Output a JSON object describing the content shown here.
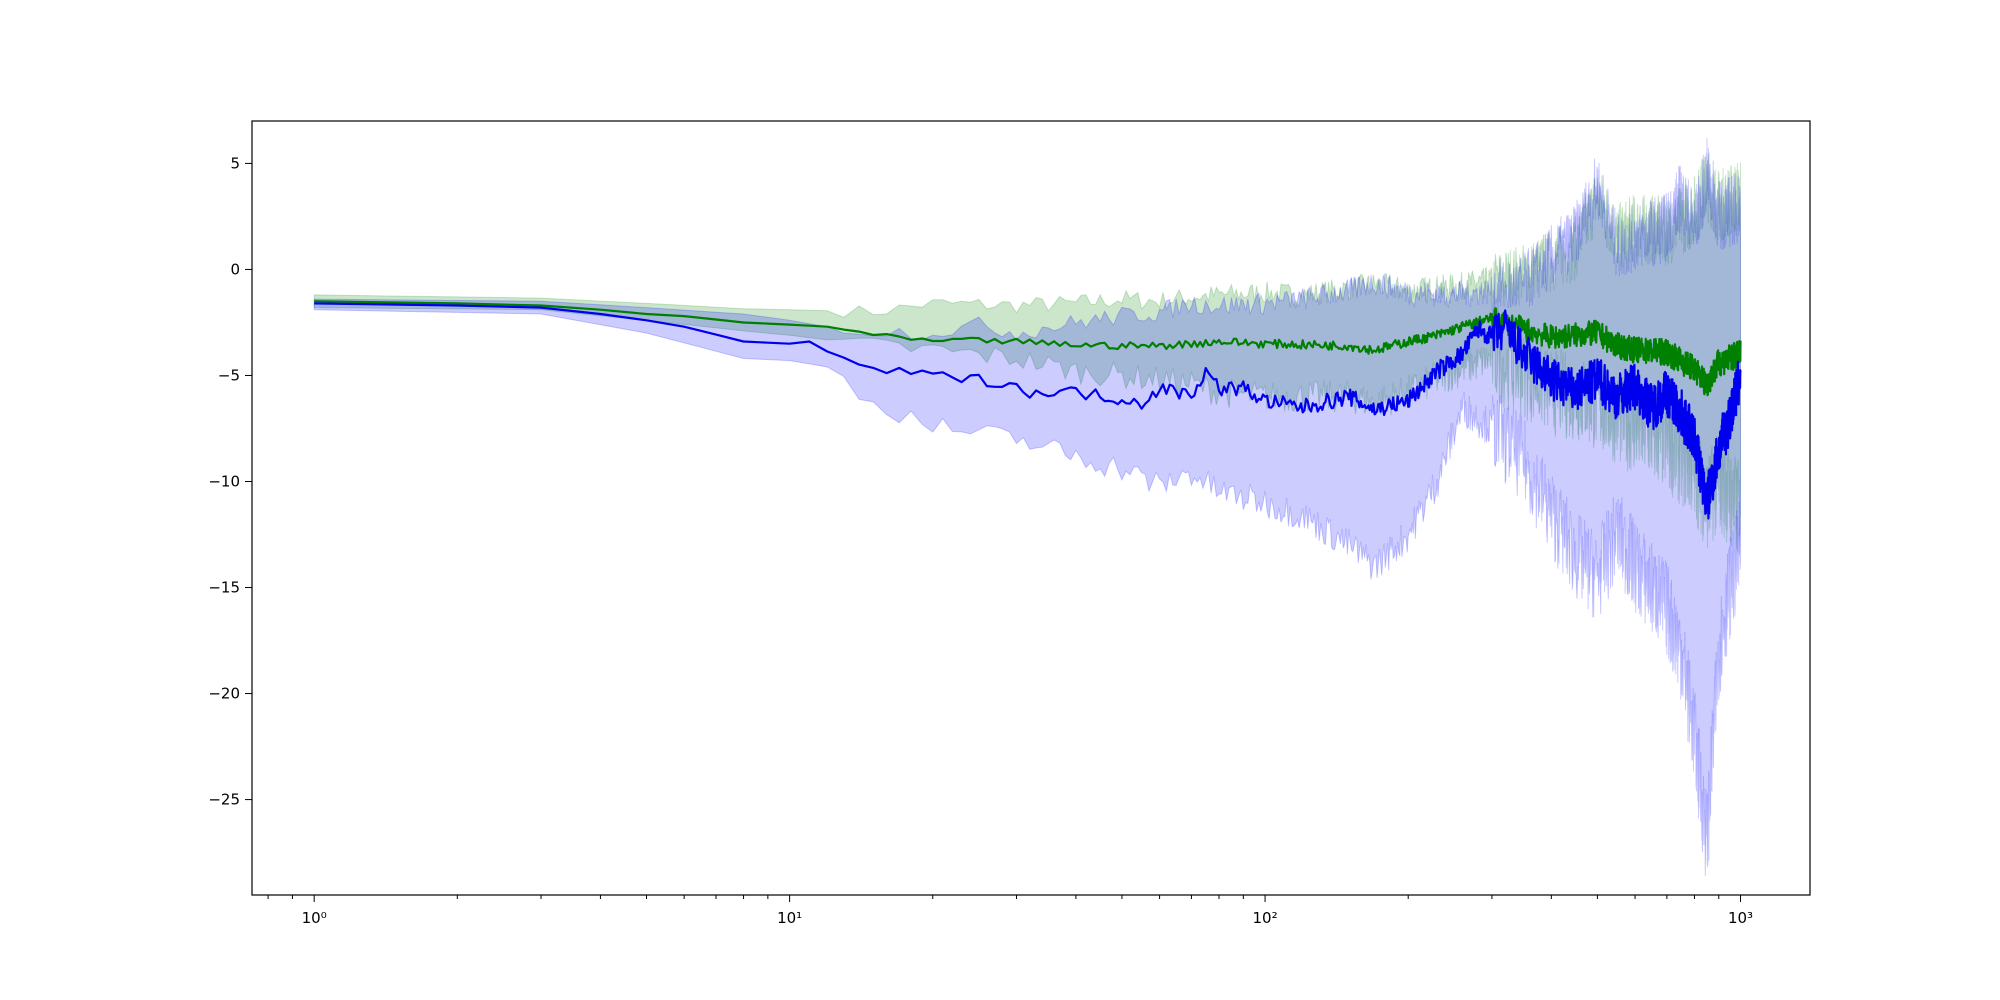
{
  "chart_data": {
    "type": "line",
    "title": "",
    "xlabel": "",
    "ylabel": "",
    "xscale": "log",
    "xlim": [
      0.74,
      1400
    ],
    "ylim": [
      -29.5,
      7
    ],
    "grid": false,
    "legend": "none",
    "x_ticks": [
      {
        "value": 1,
        "label": "10⁰"
      },
      {
        "value": 10,
        "label": "10¹"
      },
      {
        "value": 100,
        "label": "10²"
      },
      {
        "value": 1000,
        "label": "10³"
      }
    ],
    "y_ticks": [
      {
        "value": 5,
        "label": "5"
      },
      {
        "value": 0,
        "label": "0"
      },
      {
        "value": -5,
        "label": "−5"
      },
      {
        "value": -10,
        "label": "−10"
      },
      {
        "value": -15,
        "label": "−15"
      },
      {
        "value": -20,
        "label": "−20"
      },
      {
        "value": -25,
        "label": "−25"
      }
    ],
    "series": [
      {
        "color": "#008000",
        "band_fill": "#008000",
        "band_opacity": 0.2,
        "mean": [
          [
            1,
            -1.5
          ],
          [
            2,
            -1.6
          ],
          [
            3,
            -1.7
          ],
          [
            4,
            -1.9
          ],
          [
            5,
            -2.1
          ],
          [
            6,
            -2.2
          ],
          [
            8,
            -2.5
          ],
          [
            10,
            -2.6
          ],
          [
            12,
            -2.7
          ],
          [
            15,
            -3.1
          ],
          [
            20,
            -3.4
          ],
          [
            25,
            -3.35
          ],
          [
            30,
            -3.4
          ],
          [
            35,
            -3.5
          ],
          [
            40,
            -3.55
          ],
          [
            50,
            -3.6
          ],
          [
            60,
            -3.6
          ],
          [
            70,
            -3.5
          ],
          [
            80,
            -3.4
          ],
          [
            100,
            -3.5
          ],
          [
            120,
            -3.55
          ],
          [
            150,
            -3.6
          ],
          [
            170,
            -3.8
          ],
          [
            200,
            -3.4
          ],
          [
            230,
            -3.1
          ],
          [
            260,
            -2.7
          ],
          [
            300,
            -2.3
          ],
          [
            350,
            -2.8
          ],
          [
            400,
            -3.2
          ],
          [
            450,
            -3.1
          ],
          [
            500,
            -3.0
          ],
          [
            550,
            -3.6
          ],
          [
            600,
            -3.8
          ],
          [
            700,
            -3.9
          ],
          [
            800,
            -4.7
          ],
          [
            850,
            -5.4
          ],
          [
            900,
            -4.4
          ],
          [
            1000,
            -4.0
          ]
        ],
        "upper": [
          [
            1,
            -1.2
          ],
          [
            3,
            -1.35
          ],
          [
            5,
            -1.6
          ],
          [
            8,
            -1.85
          ],
          [
            10,
            -1.9
          ],
          [
            15,
            -2.0
          ],
          [
            20,
            -1.6
          ],
          [
            30,
            -1.7
          ],
          [
            40,
            -1.6
          ],
          [
            50,
            -1.4
          ],
          [
            60,
            -1.5
          ],
          [
            70,
            -1.3
          ],
          [
            80,
            -1.2
          ],
          [
            100,
            -1.1
          ],
          [
            120,
            -1.2
          ],
          [
            150,
            -0.9
          ],
          [
            170,
            -0.7
          ],
          [
            200,
            -1.0
          ],
          [
            250,
            -0.8
          ],
          [
            300,
            -0.5
          ],
          [
            350,
            -0.2
          ],
          [
            400,
            0.4
          ],
          [
            450,
            1.0
          ],
          [
            500,
            3.5
          ],
          [
            550,
            1.5
          ],
          [
            600,
            2.0
          ],
          [
            700,
            1.8
          ],
          [
            800,
            2.8
          ],
          [
            850,
            4.0
          ],
          [
            900,
            3.0
          ],
          [
            1000,
            3.5
          ]
        ],
        "lower": [
          [
            1,
            -1.8
          ],
          [
            3,
            -1.9
          ],
          [
            5,
            -2.4
          ],
          [
            8,
            -2.9
          ],
          [
            10,
            -3.1
          ],
          [
            15,
            -3.6
          ],
          [
            20,
            -3.8
          ],
          [
            30,
            -4.2
          ],
          [
            40,
            -4.8
          ],
          [
            50,
            -5.0
          ],
          [
            60,
            -5.2
          ],
          [
            70,
            -5.4
          ],
          [
            80,
            -5.8
          ],
          [
            100,
            -6.0
          ],
          [
            120,
            -6.0
          ],
          [
            150,
            -6.0
          ],
          [
            170,
            -6.3
          ],
          [
            200,
            -5.8
          ],
          [
            250,
            -4.8
          ],
          [
            300,
            -4.2
          ],
          [
            350,
            -5.0
          ],
          [
            400,
            -5.8
          ],
          [
            450,
            -6.0
          ],
          [
            500,
            -6.5
          ],
          [
            550,
            -7.0
          ],
          [
            600,
            -7.5
          ],
          [
            700,
            -8.2
          ],
          [
            800,
            -9.5
          ],
          [
            850,
            -11.0
          ],
          [
            900,
            -10.0
          ],
          [
            1000,
            -11.5
          ]
        ]
      },
      {
        "color": "#0000ee",
        "band_fill": "#0000ff",
        "band_opacity": 0.2,
        "mean": [
          [
            1,
            -1.6
          ],
          [
            2,
            -1.7
          ],
          [
            3,
            -1.8
          ],
          [
            4,
            -2.1
          ],
          [
            5,
            -2.4
          ],
          [
            6,
            -2.7
          ],
          [
            8,
            -3.4
          ],
          [
            10,
            -3.5
          ],
          [
            11,
            -3.4
          ],
          [
            13,
            -4.3
          ],
          [
            15,
            -4.7
          ],
          [
            20,
            -5.0
          ],
          [
            25,
            -5.2
          ],
          [
            30,
            -5.4
          ],
          [
            32,
            -6.0
          ],
          [
            35,
            -5.7
          ],
          [
            40,
            -5.8
          ],
          [
            50,
            -6.1
          ],
          [
            55,
            -6.3
          ],
          [
            60,
            -5.6
          ],
          [
            70,
            -5.9
          ],
          [
            75,
            -4.8
          ],
          [
            80,
            -5.6
          ],
          [
            90,
            -5.6
          ],
          [
            100,
            -6.2
          ],
          [
            120,
            -6.5
          ],
          [
            150,
            -6.0
          ],
          [
            170,
            -6.6
          ],
          [
            200,
            -6.2
          ],
          [
            230,
            -4.8
          ],
          [
            260,
            -4.0
          ],
          [
            280,
            -2.8
          ],
          [
            300,
            -3.2
          ],
          [
            320,
            -2.8
          ],
          [
            350,
            -4.0
          ],
          [
            400,
            -5.2
          ],
          [
            450,
            -5.8
          ],
          [
            500,
            -5.2
          ],
          [
            550,
            -6.0
          ],
          [
            600,
            -5.5
          ],
          [
            650,
            -6.5
          ],
          [
            700,
            -5.8
          ],
          [
            750,
            -6.8
          ],
          [
            800,
            -8.0
          ],
          [
            850,
            -11.0
          ],
          [
            900,
            -8.5
          ],
          [
            950,
            -7.0
          ],
          [
            1000,
            -5.0
          ]
        ],
        "upper": [
          [
            1,
            -1.4
          ],
          [
            3,
            -1.5
          ],
          [
            5,
            -1.8
          ],
          [
            8,
            -2.1
          ],
          [
            10,
            -2.4
          ],
          [
            12,
            -2.7
          ],
          [
            15,
            -2.9
          ],
          [
            20,
            -3.0
          ],
          [
            25,
            -2.6
          ],
          [
            30,
            -3.0
          ],
          [
            40,
            -2.5
          ],
          [
            50,
            -2.2
          ],
          [
            60,
            -2.0
          ],
          [
            70,
            -1.6
          ],
          [
            80,
            -1.7
          ],
          [
            100,
            -1.6
          ],
          [
            120,
            -1.4
          ],
          [
            150,
            -1.0
          ],
          [
            170,
            -0.6
          ],
          [
            200,
            -1.1
          ],
          [
            250,
            -1.2
          ],
          [
            300,
            -1.0
          ],
          [
            350,
            -0.7
          ],
          [
            400,
            0.6
          ],
          [
            450,
            1.6
          ],
          [
            500,
            4.0
          ],
          [
            550,
            1.0
          ],
          [
            600,
            1.5
          ],
          [
            700,
            2.0
          ],
          [
            750,
            3.5
          ],
          [
            800,
            2.0
          ],
          [
            850,
            4.5
          ],
          [
            900,
            2.5
          ],
          [
            1000,
            3.0
          ]
        ],
        "lower": [
          [
            1,
            -1.9
          ],
          [
            3,
            -2.1
          ],
          [
            5,
            -3.0
          ],
          [
            8,
            -4.2
          ],
          [
            10,
            -4.3
          ],
          [
            12,
            -4.6
          ],
          [
            15,
            -6.3
          ],
          [
            20,
            -7.4
          ],
          [
            30,
            -8.0
          ],
          [
            40,
            -8.8
          ],
          [
            50,
            -9.4
          ],
          [
            60,
            -10.2
          ],
          [
            70,
            -9.6
          ],
          [
            80,
            -10.5
          ],
          [
            100,
            -11.0
          ],
          [
            120,
            -11.6
          ],
          [
            150,
            -13.0
          ],
          [
            170,
            -14.0
          ],
          [
            200,
            -12.5
          ],
          [
            230,
            -10.0
          ],
          [
            260,
            -6.5
          ],
          [
            300,
            -7.5
          ],
          [
            350,
            -9.0
          ],
          [
            400,
            -11.5
          ],
          [
            450,
            -13.5
          ],
          [
            500,
            -14.5
          ],
          [
            550,
            -12.5
          ],
          [
            600,
            -14.0
          ],
          [
            700,
            -16.0
          ],
          [
            750,
            -18.0
          ],
          [
            800,
            -22.0
          ],
          [
            850,
            -27.0
          ],
          [
            900,
            -18.0
          ],
          [
            950,
            -15.0
          ],
          [
            1000,
            -13.0
          ]
        ]
      }
    ]
  }
}
